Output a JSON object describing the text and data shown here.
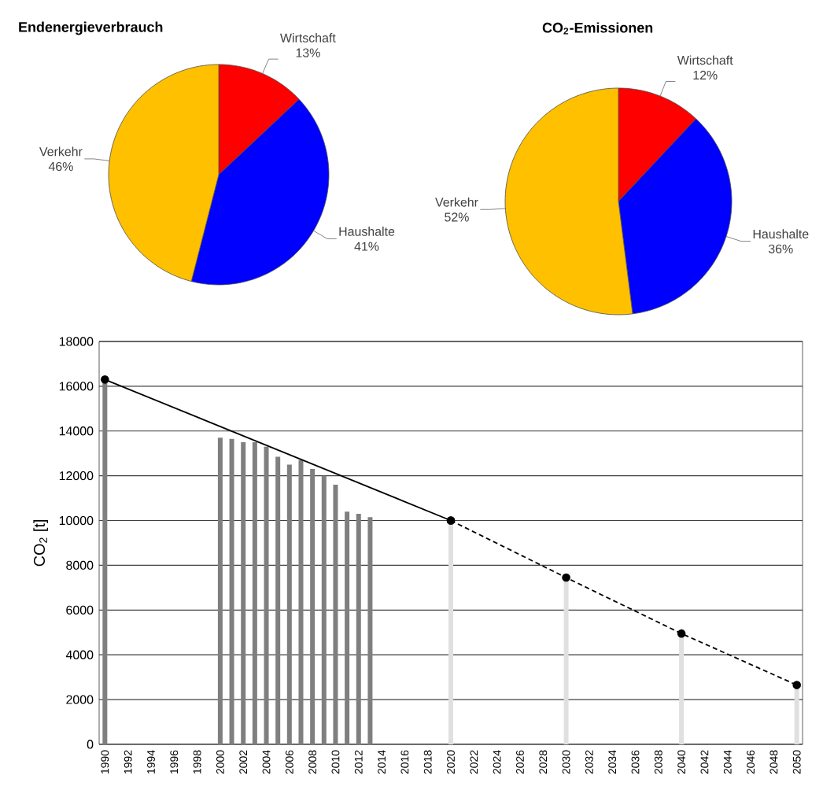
{
  "chart_data": [
    {
      "type": "pie",
      "title": "Endenergieverbrauch",
      "categories": [
        "Wirtschaft",
        "Haushalte",
        "Verkehr"
      ],
      "values": [
        13,
        41,
        46
      ],
      "value_labels": [
        "13%",
        "41%",
        "46%"
      ],
      "colors": [
        "#ff0000",
        "#0000ff",
        "#ffc000"
      ]
    },
    {
      "type": "pie",
      "title": "CO$_{2}$-Emissionen",
      "categories": [
        "Wirtschaft",
        "Haushalte",
        "Verkehr"
      ],
      "values": [
        12,
        36,
        52
      ],
      "value_labels": [
        "12%",
        "36%",
        "52%"
      ],
      "colors": [
        "#ff0000",
        "#0000ff",
        "#ffc000"
      ]
    },
    {
      "type": "bar",
      "ylabel": "CO$_{2}$ [t]",
      "xlim": [
        1989.5,
        2050.5
      ],
      "ylim": [
        0,
        18000
      ],
      "xticks": [
        1990,
        1992,
        1994,
        1996,
        1998,
        2000,
        2002,
        2004,
        2006,
        2008,
        2010,
        2012,
        2014,
        2016,
        2018,
        2020,
        2022,
        2024,
        2026,
        2028,
        2030,
        2032,
        2034,
        2036,
        2038,
        2040,
        2042,
        2044,
        2046,
        2048,
        2050
      ],
      "yticks": [
        0,
        2000,
        4000,
        6000,
        8000,
        10000,
        12000,
        14000,
        16000,
        18000
      ],
      "grid": "y",
      "marker": "circle",
      "series": [
        {
          "type": "bar",
          "color": "#7f7f7f",
          "x": [
            1990,
            2000,
            2001,
            2002,
            2003,
            2004,
            2005,
            2006,
            2007,
            2008,
            2009,
            2010,
            2011,
            2012,
            2013
          ],
          "values": [
            16300,
            13700,
            13650,
            13500,
            13500,
            13300,
            12850,
            12500,
            12700,
            12300,
            12000,
            11600,
            10400,
            10300,
            10150
          ]
        },
        {
          "type": "bar",
          "color": "#e0e0e0",
          "x": [
            2020,
            2030,
            2040,
            2050
          ],
          "values": [
            10000,
            7450,
            4950,
            2650
          ]
        },
        {
          "type": "line",
          "color": "#000000",
          "line_style": "solid",
          "x": [
            1990,
            2020
          ],
          "values": [
            16300,
            10000
          ]
        },
        {
          "type": "line",
          "color": "#000000",
          "line_style": "dashed",
          "x": [
            2020,
            2030,
            2040,
            2050
          ],
          "values": [
            10000,
            7450,
            4950,
            2650
          ]
        }
      ]
    }
  ]
}
